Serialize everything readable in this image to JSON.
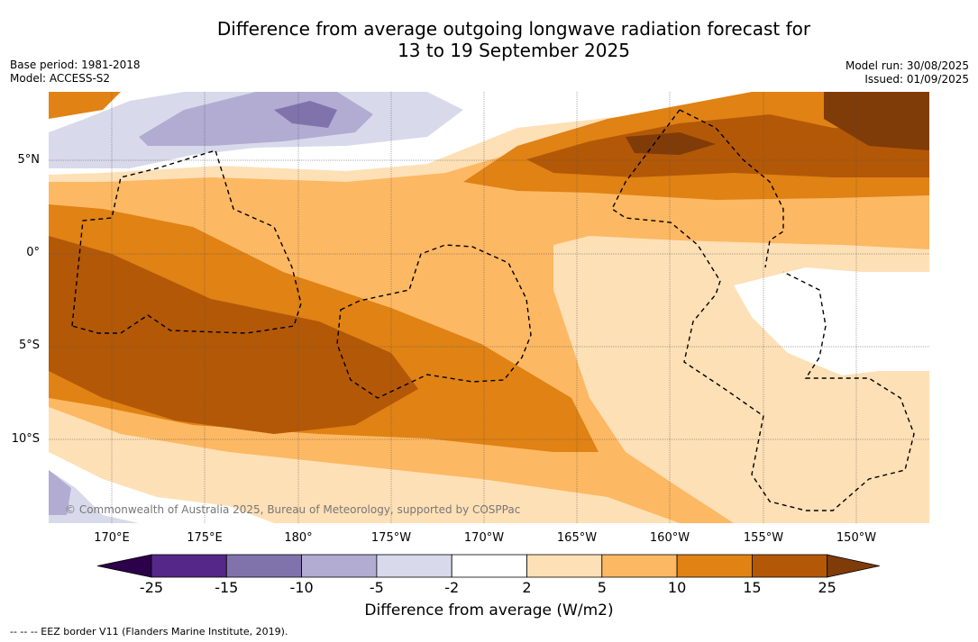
{
  "header": {
    "title_line1": "Difference from average outgoing longwave radiation forecast for",
    "title_line2": "13 to 19 September 2025",
    "base_period": "Base period: 1981-2018",
    "model": "Model: ACCESS-S2",
    "model_run": "Model run: 30/08/2025",
    "issued": "Issued: 01/09/2025"
  },
  "map": {
    "lon_labels": [
      "170°E",
      "175°E",
      "180°",
      "175°W",
      "170°W",
      "165°W",
      "160°W",
      "155°W",
      "150°W"
    ],
    "lat_labels": [
      "5°N",
      "0°",
      "5°S",
      "10°S"
    ],
    "credit": "© Commonwealth of Australia 2025, Bureau of Meteorology, supported by COSPPac",
    "legend_footnote": "--  --  -- EEZ border V11 (Flanders Marine Institute, 2019)."
  },
  "colorbar": {
    "title": "Difference from average (W/m2)",
    "ticks": [
      "-25",
      "-15",
      "-10",
      "-5",
      "-2",
      "2",
      "5",
      "10",
      "15",
      "25"
    ],
    "colors": [
      "#2d004b",
      "#542788",
      "#8073ac",
      "#b2abd2",
      "#d8daeb",
      "#ffffff",
      "#fee0b6",
      "#fdb863",
      "#e08214",
      "#b35806",
      "#7f3b08"
    ]
  }
}
